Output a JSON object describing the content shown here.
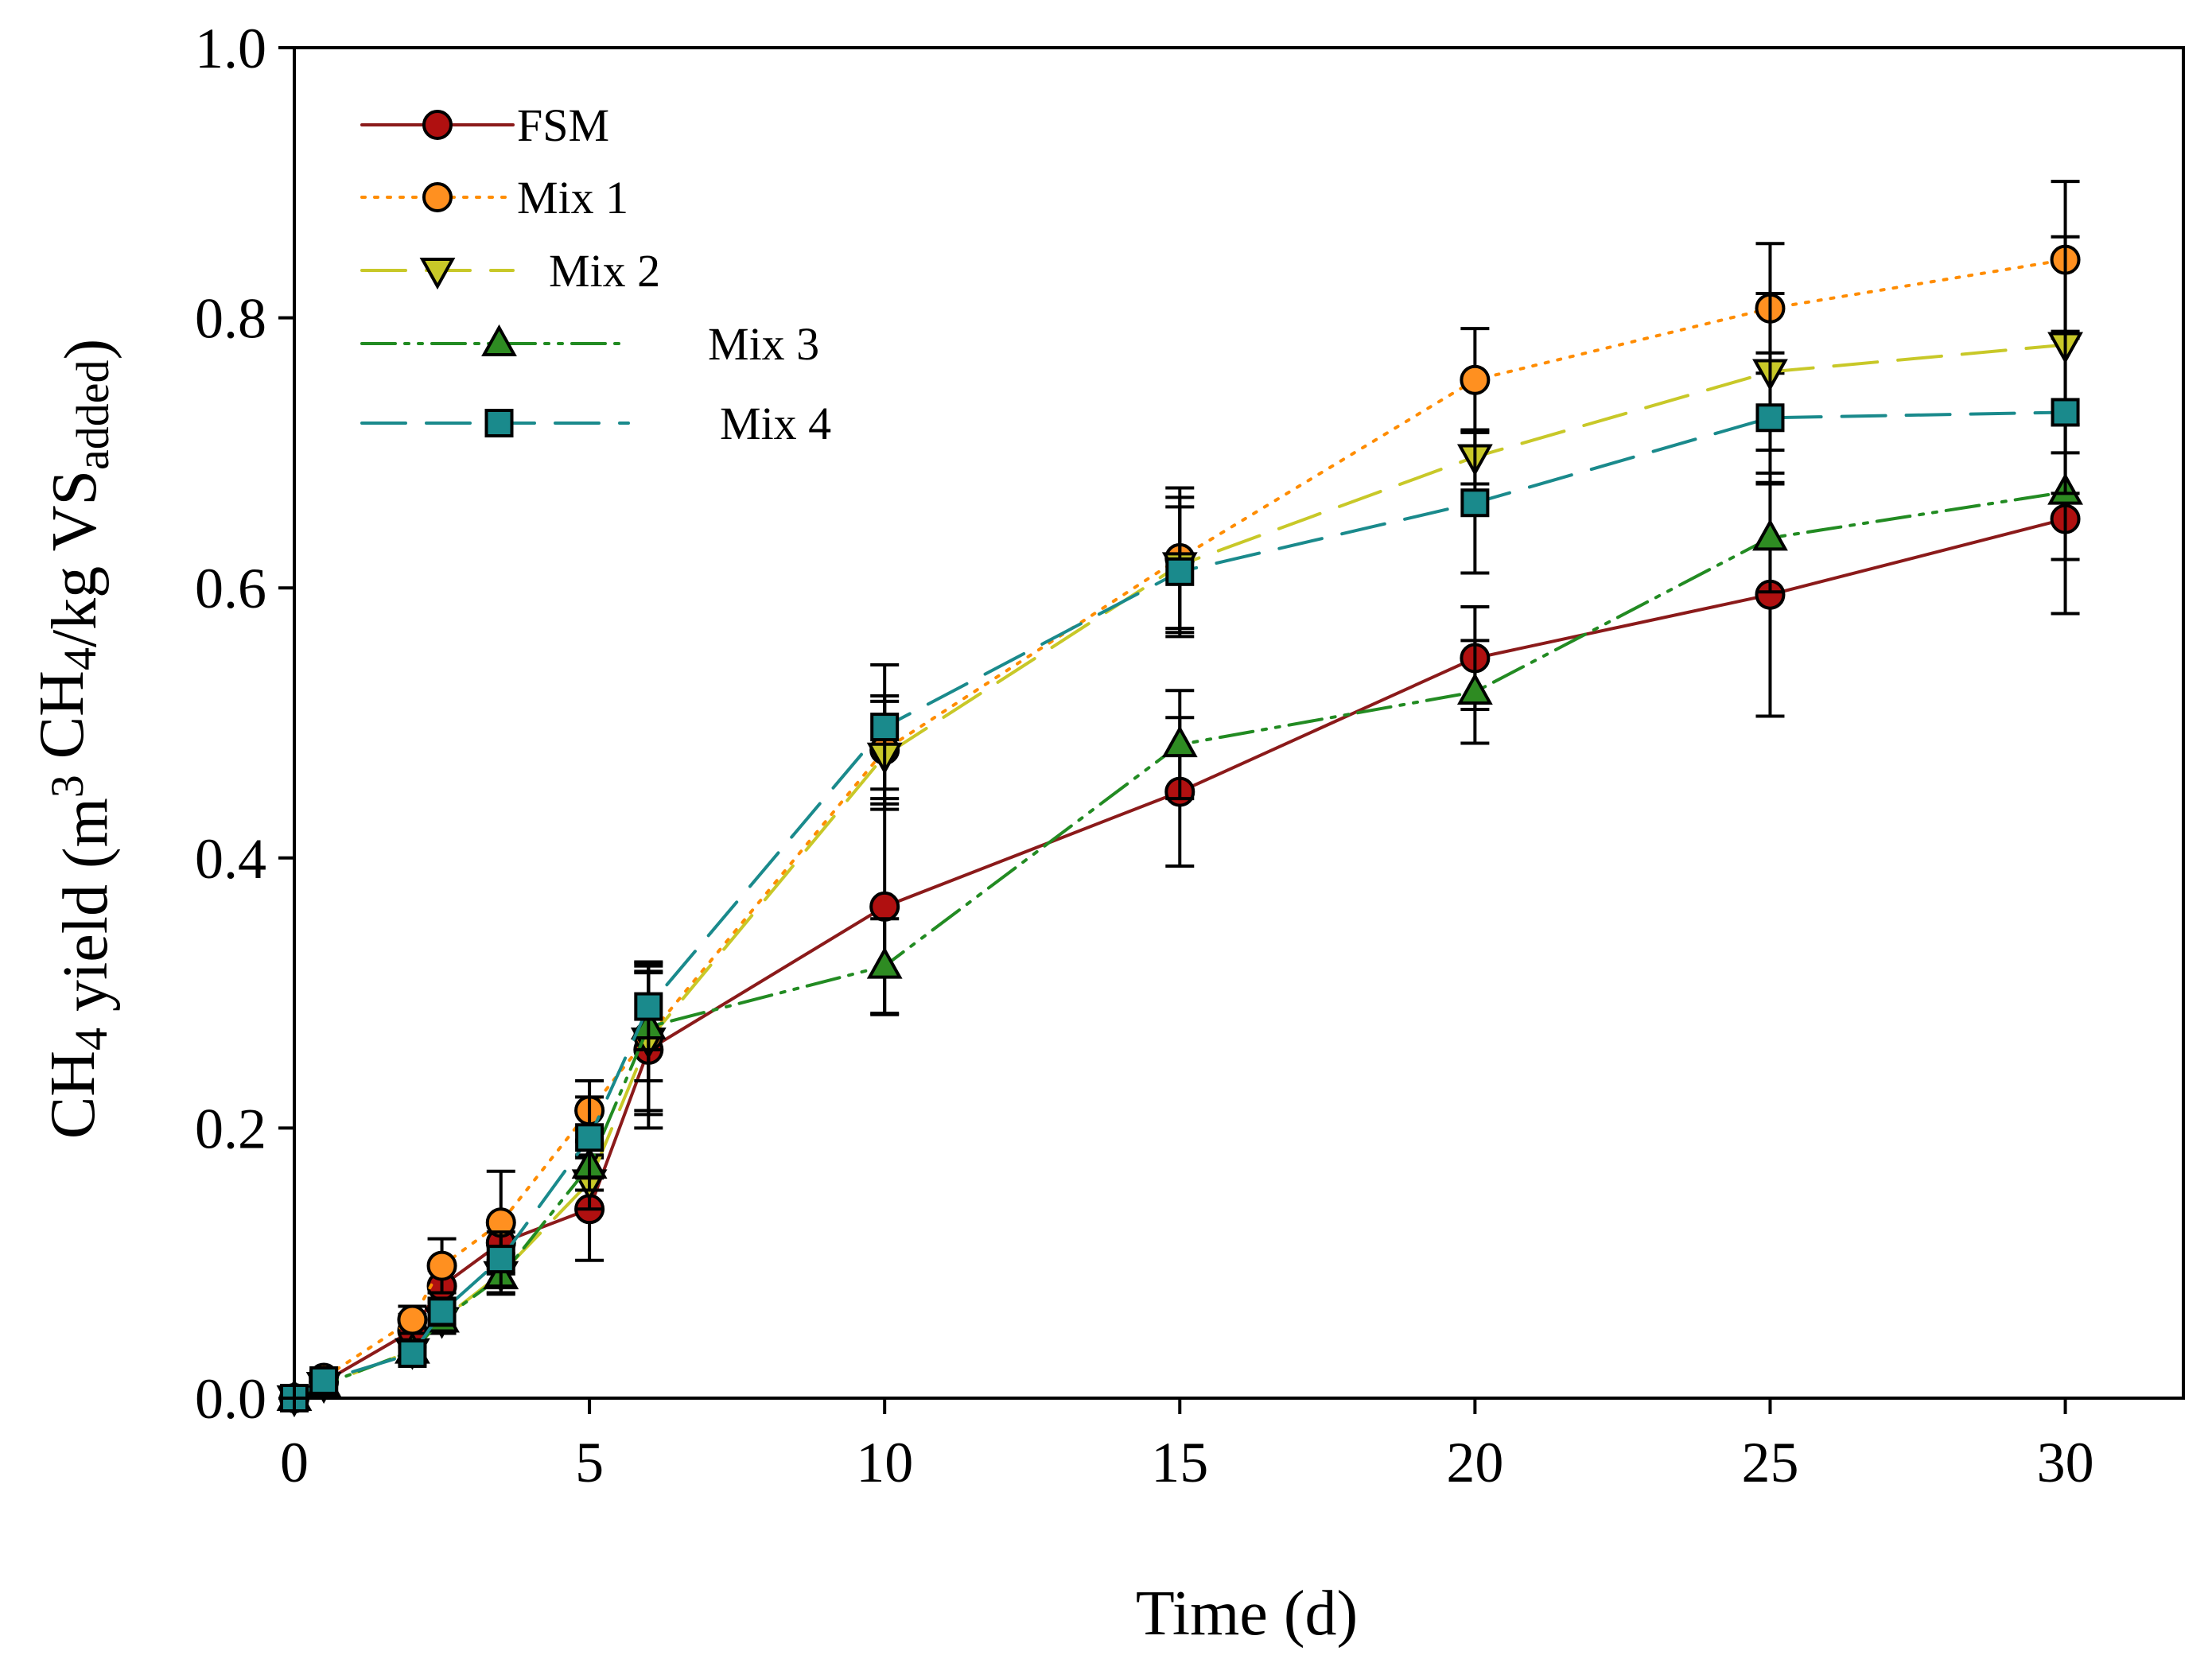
{
  "chart_data": {
    "type": "line",
    "title": "",
    "xlabel": "Time (d)",
    "ylabel": {
      "parts": [
        {
          "text": "CH",
          "style": "normal"
        },
        {
          "text": "4",
          "style": "sub"
        },
        {
          "text": " yield (m",
          "style": "normal"
        },
        {
          "text": "3",
          "style": "sup"
        },
        {
          "text": " CH",
          "style": "normal"
        },
        {
          "text": "4",
          "style": "sub"
        },
        {
          "text": "/kg VS",
          "style": "normal"
        },
        {
          "text": "added",
          "style": "sub"
        },
        {
          "text": ")",
          "style": "normal"
        }
      ]
    },
    "xlim": [
      0,
      32
    ],
    "ylim": [
      0,
      1.0
    ],
    "xticks": [
      0,
      5,
      10,
      15,
      20,
      25,
      30
    ],
    "xtick_labels": [
      "0",
      "5",
      "10",
      "15",
      "20",
      "25",
      "30"
    ],
    "yticks": [
      0.0,
      0.2,
      0.4,
      0.6,
      0.8,
      1.0
    ],
    "ytick_labels": [
      "0.0",
      "0.2",
      "0.4",
      "0.6",
      "0.8",
      "1.0"
    ],
    "grid": false,
    "legend_position": "top-left",
    "x": [
      0,
      0.5,
      2,
      2.5,
      3.5,
      5,
      6,
      10,
      15,
      20,
      25,
      30
    ],
    "series": [
      {
        "name": "FSM",
        "color": "#8b1a1a",
        "fill": "#b01010",
        "marker": "circle",
        "dash": "solid",
        "values": [
          0,
          0.012,
          0.05,
          0.083,
          0.115,
          0.14,
          0.258,
          0.364,
          0.449,
          0.548,
          0.595,
          0.651
        ],
        "errors": [
          0,
          0.005,
          0.012,
          0.012,
          0.015,
          0.038,
          0.058,
          0.08,
          0.055,
          0.038,
          0.09,
          0.07
        ]
      },
      {
        "name": "Mix 1",
        "color": "#ff8c00",
        "fill": "#ff9020",
        "marker": "circle",
        "dash": "dotted",
        "values": [
          0,
          0.015,
          0.058,
          0.098,
          0.13,
          0.213,
          0.268,
          0.48,
          0.622,
          0.754,
          0.807,
          0.843
        ],
        "errors": [
          0,
          0.005,
          0.01,
          0.02,
          0.038,
          0.022,
          0.055,
          0.04,
          0.052,
          0.038,
          0.048,
          0.058
        ]
      },
      {
        "name": "Mix 2",
        "color": "#c8c828",
        "fill": "#c8c828",
        "marker": "triangle-down",
        "dash": "long-dash",
        "values": [
          0,
          0.01,
          0.035,
          0.058,
          0.092,
          0.16,
          0.265,
          0.476,
          0.617,
          0.697,
          0.76,
          0.78
        ],
        "errors": [
          0,
          0.005,
          0.008,
          0.01,
          0.015,
          0.02,
          0.055,
          0.04,
          0.05,
          0.02,
          0.058,
          0.08
        ]
      },
      {
        "name": "Mix 3",
        "color": "#228b22",
        "fill": "#2e8b22",
        "marker": "triangle-up",
        "dash": "dash-dot-dot",
        "values": [
          0,
          0.01,
          0.035,
          0.058,
          0.09,
          0.172,
          0.275,
          0.32,
          0.484,
          0.523,
          0.637,
          0.671
        ],
        "errors": [
          0,
          0.005,
          0.008,
          0.008,
          0.012,
          0.018,
          0.04,
          0.035,
          0.04,
          0.038,
          0.04,
          0.05
        ]
      },
      {
        "name": "Mix 4",
        "color": "#1a8a8c",
        "fill": "#1a8a8c",
        "marker": "square",
        "dash": "long-dash",
        "values": [
          0,
          0.013,
          0.033,
          0.064,
          0.103,
          0.193,
          0.29,
          0.497,
          0.612,
          0.663,
          0.726,
          0.73
        ],
        "errors": [
          0,
          0.005,
          0.008,
          0.01,
          0.02,
          0.03,
          0.032,
          0.046,
          0.048,
          0.052,
          0.048,
          0.06
        ]
      }
    ]
  }
}
